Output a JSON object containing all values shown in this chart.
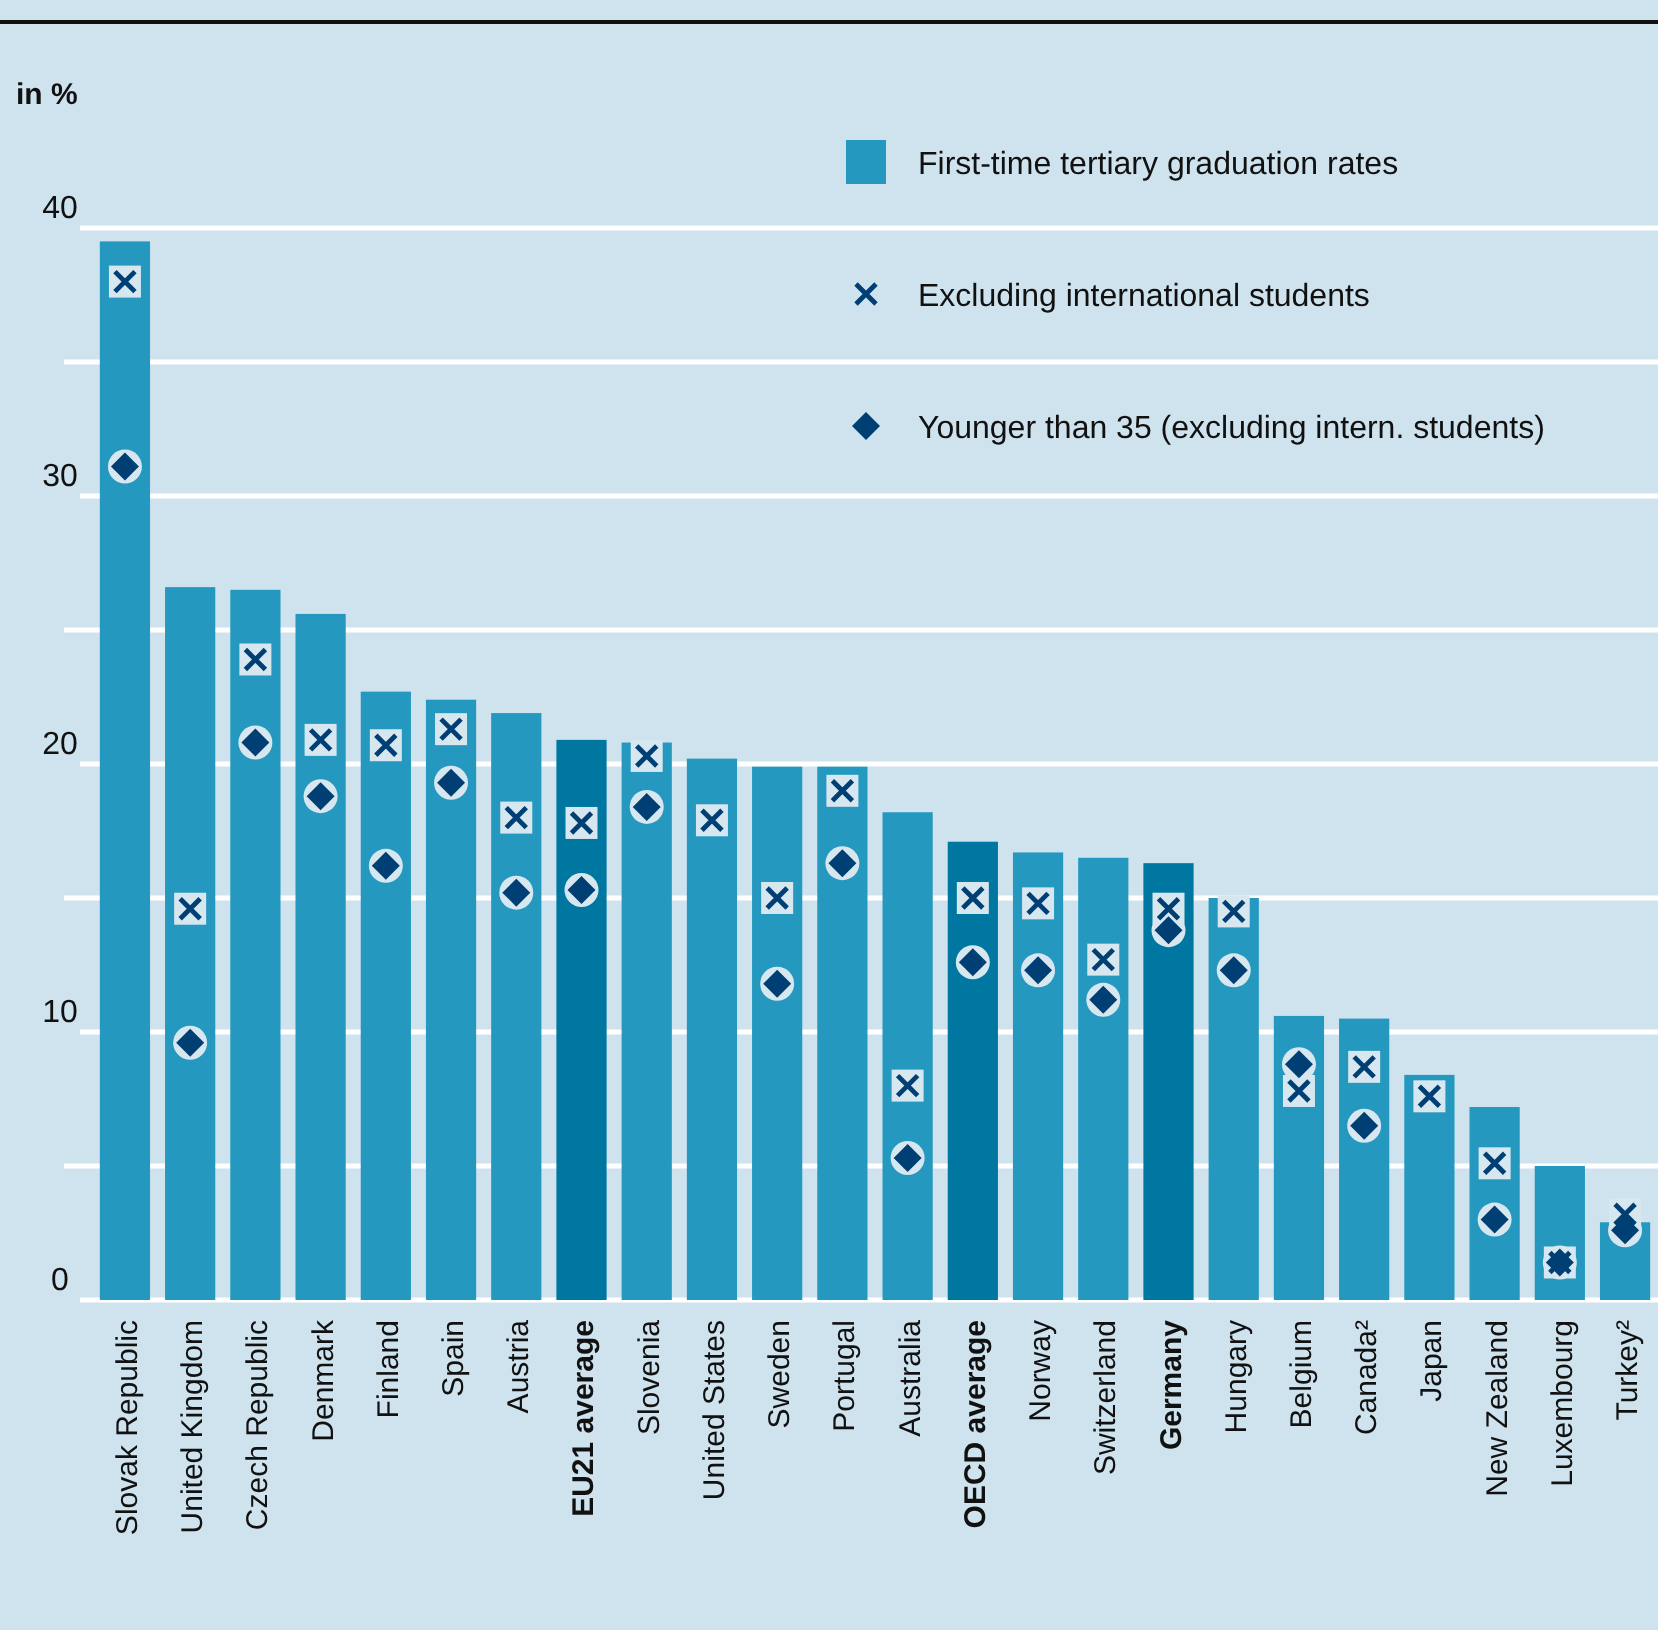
{
  "chart_data": {
    "type": "bar",
    "ylabel": "in %",
    "categories": [
      "Slovak Republic",
      "United Kingdom",
      "Czech Republic",
      "Denmark",
      "Finland",
      "Spain",
      "Austria",
      "EU21 average",
      "Slovenia",
      "United States",
      "Sweden",
      "Portugal",
      "Australia",
      "OECD average",
      "Norway",
      "Switzerland",
      "Germany",
      "Hungary",
      "Belgium",
      "Canada²",
      "Japan",
      "New Zealand",
      "Luxembourg",
      "Turkey²"
    ],
    "series": [
      {
        "name": "First-time tertiary graduation rates",
        "color": "#2498bf",
        "colors": [
          "#2498bf",
          "#2498bf",
          "#2498bf",
          "#2498bf",
          "#2498bf",
          "#2498bf",
          "#2498bf",
          "#0077a0",
          "#2498bf",
          "#2498bf",
          "#2498bf",
          "#2498bf",
          "#2498bf",
          "#0077a0",
          "#2498bf",
          "#2498bf",
          "#0077a0",
          "#2498bf",
          "#2498bf",
          "#2498bf",
          "#2498bf",
          "#2498bf",
          "#2498bf",
          "#2498bf"
        ],
        "values": [
          39.5,
          26.6,
          26.5,
          25.6,
          22.7,
          22.4,
          21.9,
          20.9,
          20.8,
          20.2,
          19.9,
          19.9,
          18.2,
          17.1,
          16.7,
          16.5,
          16.3,
          15.0,
          10.6,
          10.5,
          8.4,
          7.2,
          5.0,
          2.9
        ]
      },
      {
        "name": "Excluding international students",
        "type": "scatter",
        "marker": "cross",
        "color": "#003f74",
        "values": [
          38.0,
          14.6,
          23.9,
          20.9,
          20.7,
          21.3,
          18.0,
          17.8,
          20.3,
          17.9,
          15.0,
          19.0,
          8.0,
          15.0,
          14.8,
          12.7,
          14.6,
          14.5,
          7.8,
          8.7,
          7.6,
          5.1,
          1.4,
          3.2
        ]
      },
      {
        "name": "Younger than 35 (excluding intern. students)",
        "type": "scatter",
        "marker": "diamond",
        "color": "#003f74",
        "values": [
          31.1,
          9.6,
          20.8,
          18.8,
          16.2,
          19.3,
          15.2,
          15.3,
          18.4,
          null,
          11.8,
          16.3,
          5.3,
          12.6,
          12.3,
          11.2,
          13.8,
          12.3,
          8.8,
          6.5,
          null,
          3.0,
          1.4,
          2.6
        ]
      }
    ],
    "ylim": [
      0,
      40
    ],
    "yticks": [
      0,
      {
        "value": 5,
        "label": null
      },
      10,
      {
        "value": 15,
        "label": null
      },
      20,
      {
        "value": 25,
        "label": null
      },
      30,
      {
        "value": 35,
        "label": null
      },
      40
    ],
    "grid": "y",
    "legend": "top right"
  }
}
